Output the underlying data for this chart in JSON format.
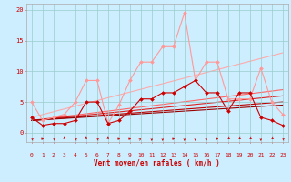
{
  "xlabel": "Vent moyen/en rafales ( km/h )",
  "bg_color": "#cceeff",
  "grid_color": "#99cccc",
  "xlim": [
    -0.5,
    23.5
  ],
  "ylim": [
    -1.5,
    21
  ],
  "yticks": [
    0,
    5,
    10,
    15,
    20
  ],
  "xticks": [
    0,
    1,
    2,
    3,
    4,
    5,
    6,
    7,
    8,
    9,
    10,
    11,
    12,
    13,
    14,
    15,
    16,
    17,
    18,
    19,
    20,
    21,
    22,
    23
  ],
  "line_light_data": {
    "x": [
      0,
      1,
      2,
      3,
      4,
      5,
      6,
      7,
      8,
      9,
      10,
      11,
      12,
      13,
      14,
      15,
      16,
      17,
      18,
      19,
      20,
      21,
      22,
      23
    ],
    "y": [
      5.0,
      2.0,
      2.5,
      3.0,
      5.0,
      8.5,
      8.5,
      1.5,
      4.5,
      8.5,
      11.5,
      11.5,
      14.0,
      14.0,
      19.5,
      8.5,
      11.5,
      11.5,
      5.5,
      5.5,
      5.5,
      10.5,
      5.0,
      3.0
    ],
    "color": "#ff9999",
    "lw": 0.8,
    "marker": "D",
    "ms": 2.0
  },
  "line_dark_data": {
    "x": [
      0,
      1,
      2,
      3,
      4,
      5,
      6,
      7,
      8,
      9,
      10,
      11,
      12,
      13,
      14,
      15,
      16,
      17,
      18,
      19,
      20,
      21,
      22,
      23
    ],
    "y": [
      2.5,
      1.2,
      1.5,
      1.5,
      2.0,
      5.0,
      5.0,
      1.5,
      2.0,
      3.5,
      5.5,
      5.5,
      6.5,
      6.5,
      7.5,
      8.5,
      6.5,
      6.5,
      3.5,
      6.5,
      6.5,
      2.5,
      2.0,
      1.2
    ],
    "color": "#cc0000",
    "lw": 0.8,
    "marker": "D",
    "ms": 2.0
  },
  "trend_lines": [
    {
      "x0": 0,
      "y0": 2.5,
      "x1": 23,
      "y1": 13.0,
      "color": "#ffaaaa",
      "lw": 0.8
    },
    {
      "x0": 0,
      "y0": 2.0,
      "x1": 23,
      "y1": 7.0,
      "color": "#ff6666",
      "lw": 0.8
    },
    {
      "x0": 0,
      "y0": 2.0,
      "x1": 23,
      "y1": 6.0,
      "color": "#dd2222",
      "lw": 0.8
    },
    {
      "x0": 0,
      "y0": 2.0,
      "x1": 23,
      "y1": 5.0,
      "color": "#bb0000",
      "lw": 0.8
    },
    {
      "x0": 0,
      "y0": 2.0,
      "x1": 23,
      "y1": 4.5,
      "color": "#990000",
      "lw": 0.8
    }
  ],
  "wind_arrows": {
    "x": [
      0,
      1,
      2,
      3,
      4,
      5,
      6,
      7,
      8,
      9,
      10,
      11,
      12,
      13,
      14,
      15,
      16,
      17,
      18,
      19,
      20,
      21,
      22,
      23
    ],
    "angles_deg": [
      135,
      0,
      135,
      90,
      135,
      90,
      135,
      90,
      0,
      0,
      45,
      270,
      270,
      0,
      270,
      270,
      270,
      0,
      225,
      225,
      225,
      270,
      225,
      135
    ],
    "color": "#cc0000"
  }
}
